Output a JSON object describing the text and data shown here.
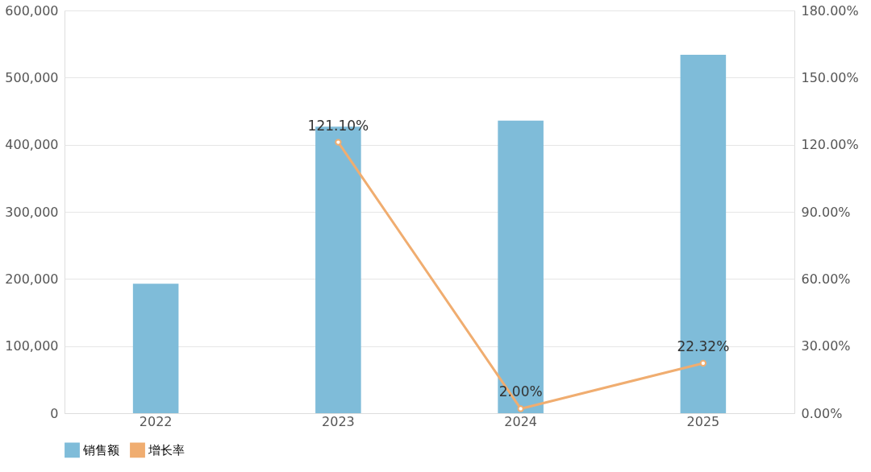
{
  "chart_data": {
    "type": "bar",
    "categories": [
      "2022",
      "2023",
      "2024",
      "2025"
    ],
    "series": [
      {
        "name": "销售额",
        "color": "#7fbcd9",
        "values": [
          193000,
          427000,
          436000,
          534000
        ]
      },
      {
        "name": "增长率",
        "type": "line",
        "axis": "y2",
        "color": "#f0ad70",
        "marker": "circle",
        "values": [
          null,
          121.1,
          2.0,
          22.32
        ],
        "value_labels": [
          null,
          "121.10%",
          "2.00%",
          "22.32%"
        ]
      }
    ],
    "ylim": [
      0,
      600000
    ],
    "yticks": [
      0,
      {
        "value": 100000,
        "label": "100,000"
      },
      {
        "value": 200000,
        "label": "200,000"
      },
      {
        "value": 300000,
        "label": "300,000"
      },
      {
        "value": 400000,
        "label": "400,000"
      },
      {
        "value": 500000,
        "label": "500,000"
      },
      {
        "value": 600000,
        "label": "600,000"
      }
    ],
    "y2lim": [
      0,
      180
    ],
    "y2ticks": [
      {
        "value": 0,
        "label": "0.00%"
      },
      {
        "value": 30,
        "label": "30.00%"
      },
      {
        "value": 60,
        "label": "60.00%"
      },
      {
        "value": 90,
        "label": "90.00%"
      },
      {
        "value": 120,
        "label": "120.00%"
      },
      {
        "value": 150,
        "label": "150.00%"
      },
      {
        "value": 180,
        "label": "180.00%"
      }
    ],
    "grid": "y",
    "legend": "bottom"
  }
}
